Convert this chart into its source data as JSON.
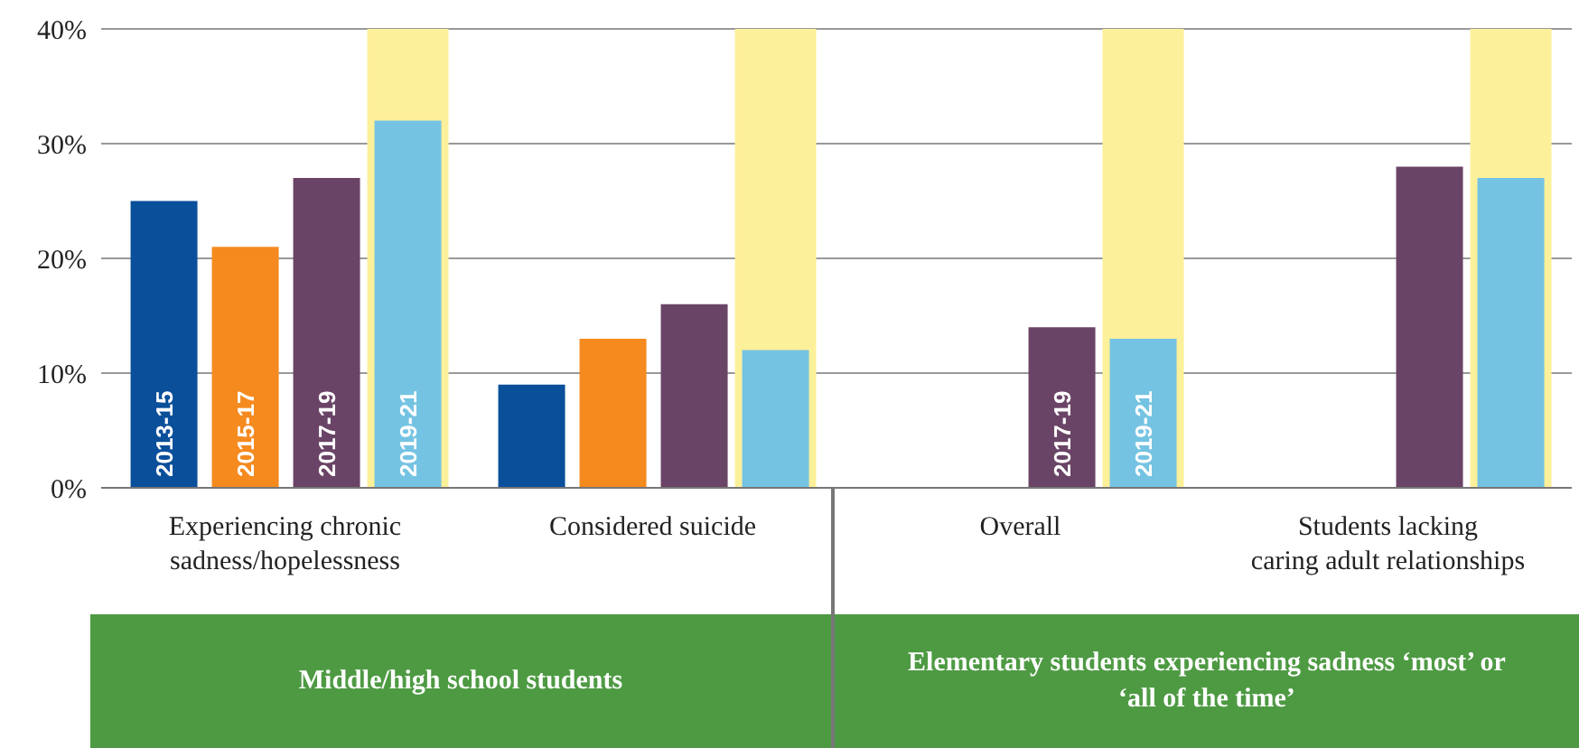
{
  "chart_data": {
    "type": "bar",
    "categories": [
      "Experiencing chronic sadness/hopelessness",
      "Considered suicide",
      "Overall",
      "Students lacking caring adult relationships"
    ],
    "series": [
      {
        "name": "2013-15",
        "color": "#0a4f9a",
        "values": [
          25,
          9,
          null,
          null
        ]
      },
      {
        "name": "2015-17",
        "color": "#f58a1f",
        "values": [
          21,
          13,
          null,
          null
        ]
      },
      {
        "name": "2017-19",
        "color": "#6a4466",
        "values": [
          27,
          16,
          14,
          28
        ]
      },
      {
        "name": "2019-21",
        "color": "#75c3e3",
        "values": [
          32,
          12,
          13,
          27
        ]
      }
    ],
    "bands": [
      {
        "axis": "x",
        "from": "Experiencing chronic sadness/hopelessness",
        "to": "Experiencing chronic sadness/hopelessness",
        "color": "#fdf09a"
      },
      {
        "axis": "x",
        "from": "Considered suicide",
        "to": "Considered suicide",
        "color": "#fdf09a"
      },
      {
        "axis": "x",
        "from": "Overall",
        "to": "Overall",
        "color": "#fdf09a"
      },
      {
        "axis": "x",
        "from": "Students lacking caring adult relationships",
        "to": "Students lacking caring adult relationships",
        "color": "#fdf09a"
      }
    ],
    "ylim": [
      0,
      40
    ],
    "yticks": [
      {
        "value": 0,
        "label": "0%"
      },
      {
        "value": 10,
        "label": "10%"
      },
      {
        "value": 20,
        "label": "20%"
      },
      {
        "value": 30,
        "label": "30%"
      },
      {
        "value": 40,
        "label": "40%"
      }
    ],
    "grid": "y",
    "legend": false,
    "annotations": [
      "Middle/high school students",
      "Elementary students experiencing sadness ‘most’ or ‘all of the time’"
    ]
  }
}
